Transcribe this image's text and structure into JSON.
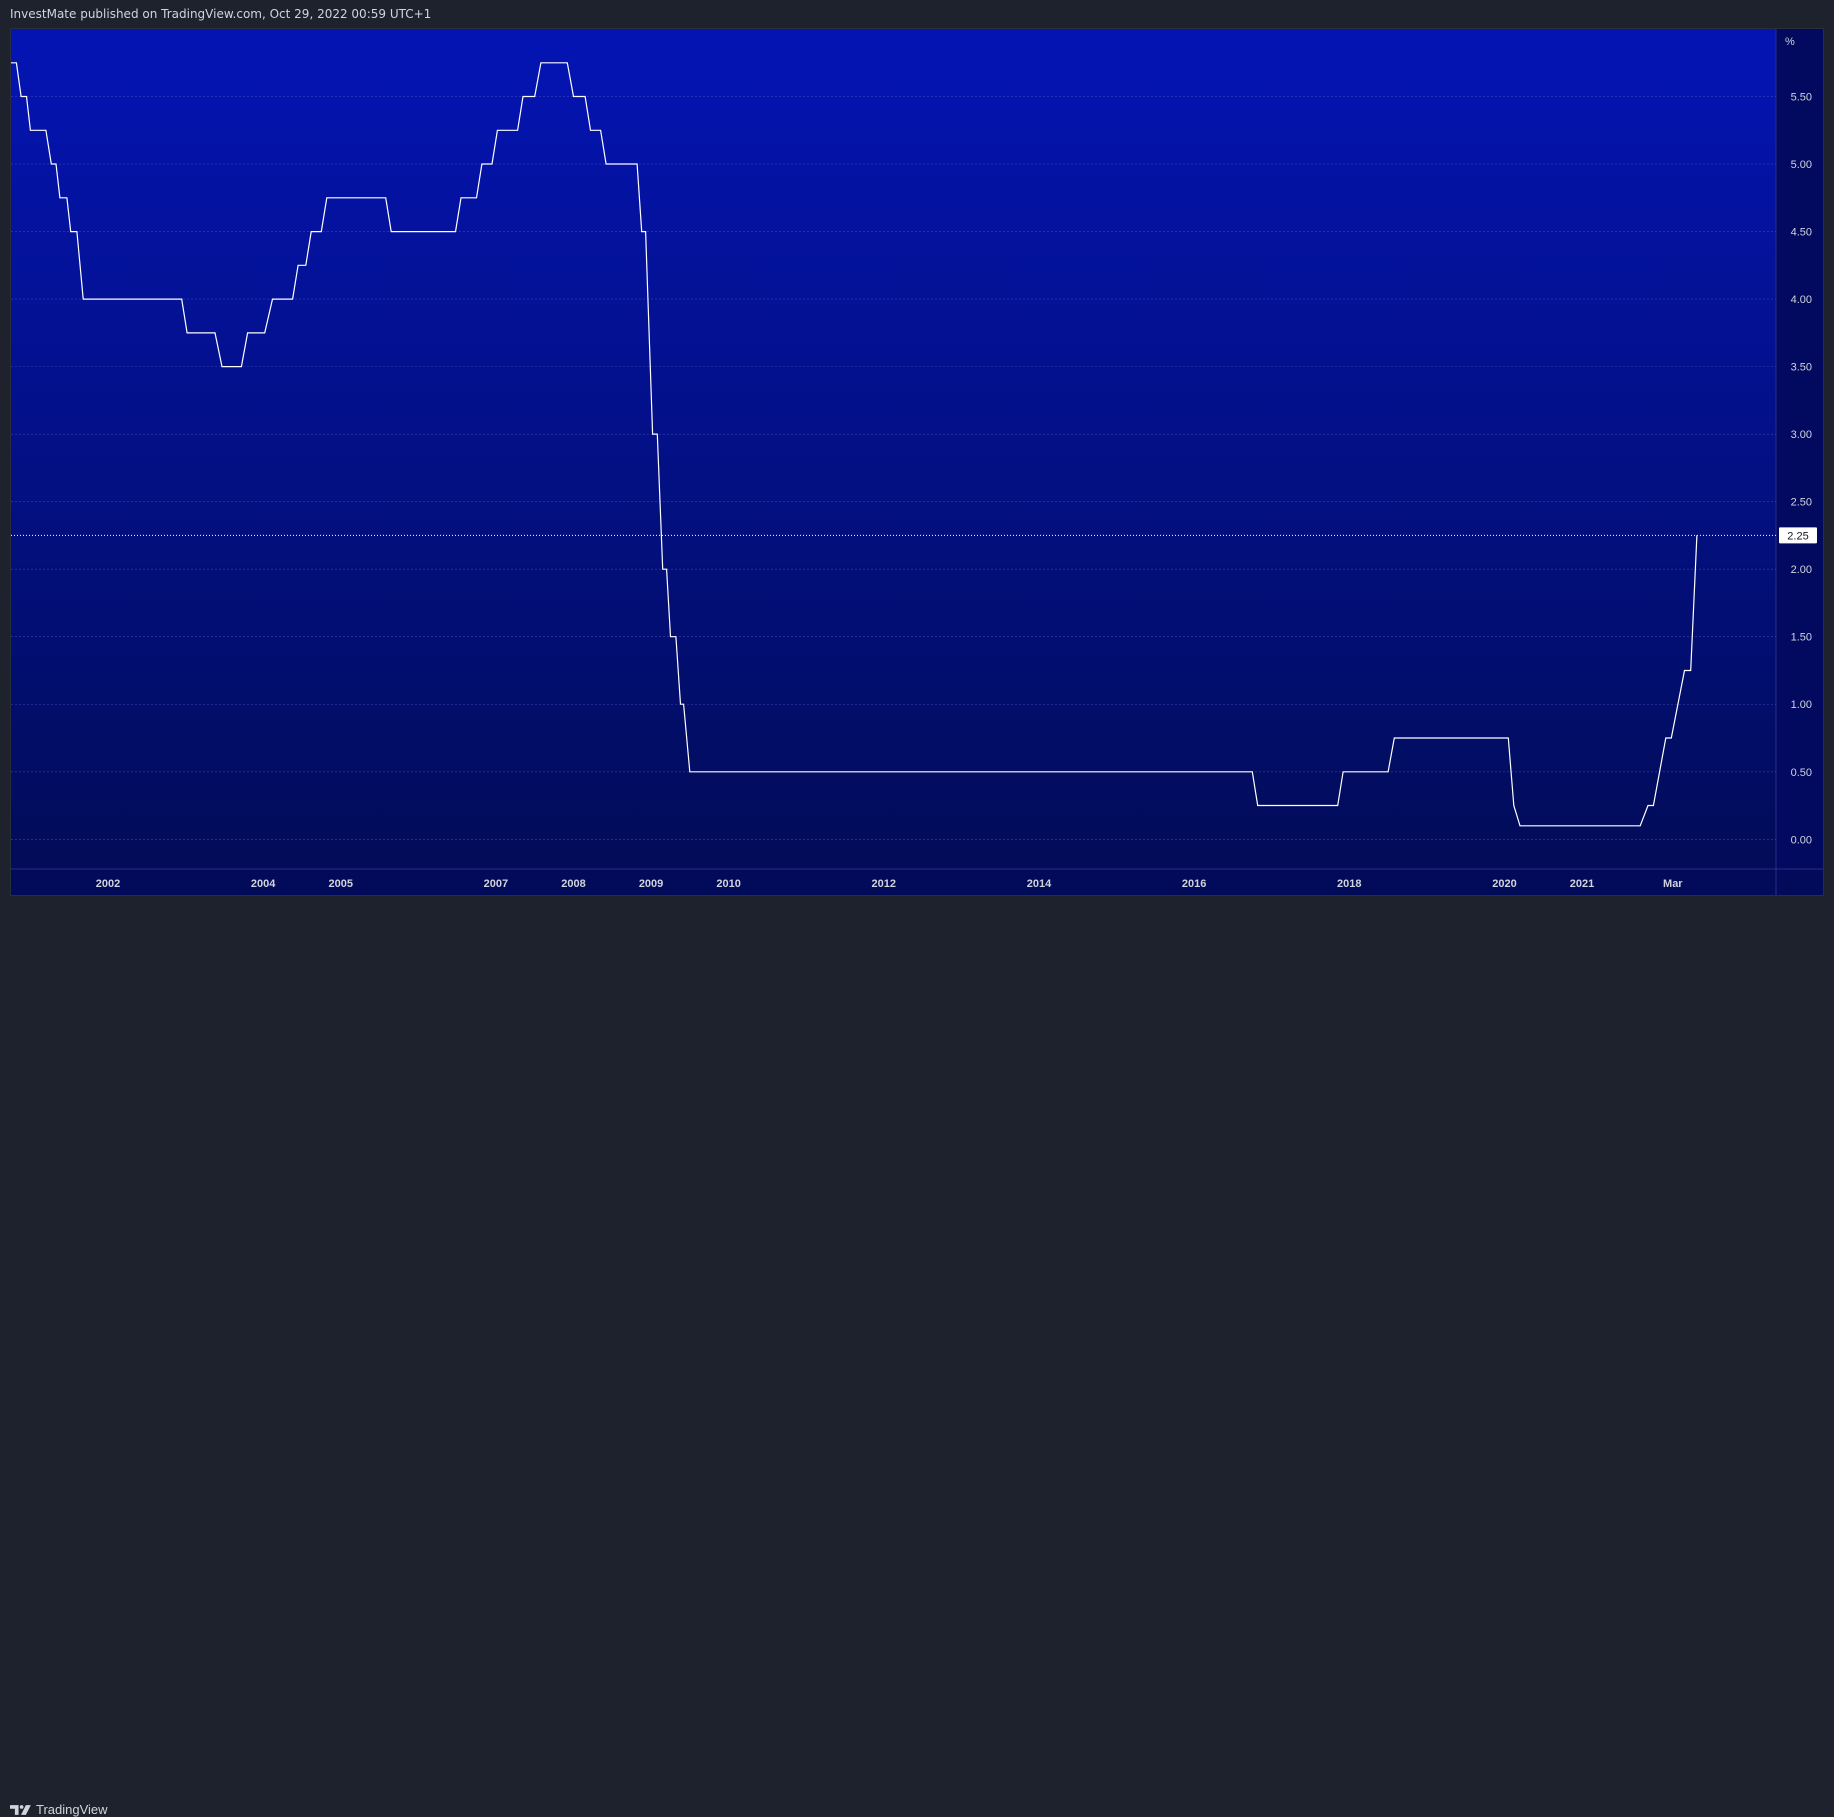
{
  "header": {
    "published_text": "InvestMate published on TradingView.com, Oct 29, 2022 00:59 UTC+1"
  },
  "footer": {
    "brand": "TradingView",
    "logo_icon": "tradingview-logo-icon"
  },
  "colors": {
    "background_top": "#0414b4",
    "background_bottom": "#020c58",
    "line": "#ffffff",
    "grid": "#4a5bc8",
    "axis_text": "#d1d4dc",
    "frame": "#1e222d"
  },
  "chart_data": {
    "type": "line",
    "unit_label": "%",
    "ylim": [
      -0.22,
      6.0
    ],
    "yticks": [
      "0.00",
      "0.50",
      "1.00",
      "1.50",
      "2.00",
      "2.50",
      "3.00",
      "3.50",
      "4.00",
      "4.50",
      "5.00",
      "5.50"
    ],
    "xticks": [
      {
        "label": "2002",
        "x": 2002.0
      },
      {
        "label": "2004",
        "x": 2004.0
      },
      {
        "label": "2005",
        "x": 2005.0
      },
      {
        "label": "2007",
        "x": 2007.0
      },
      {
        "label": "2008",
        "x": 2008.0
      },
      {
        "label": "2009",
        "x": 2009.0
      },
      {
        "label": "2010",
        "x": 2010.0
      },
      {
        "label": "2012",
        "x": 2012.0
      },
      {
        "label": "2014",
        "x": 2014.0
      },
      {
        "label": "2016",
        "x": 2016.0
      },
      {
        "label": "2018",
        "x": 2018.0
      },
      {
        "label": "2020",
        "x": 2020.0
      },
      {
        "label": "2021",
        "x": 2021.0
      },
      {
        "label": "Mar",
        "x": 2022.17
      }
    ],
    "xlim": [
      2000.75,
      2023.5
    ],
    "last_value_label": "2.25",
    "last_value": 2.25,
    "grid": true,
    "series": [
      {
        "points": [
          [
            2000.75,
            5.75
          ],
          [
            2000.82,
            5.75
          ],
          [
            2000.88,
            5.5
          ],
          [
            2000.95,
            5.5
          ],
          [
            2001.0,
            5.25
          ],
          [
            2001.2,
            5.25
          ],
          [
            2001.27,
            5.0
          ],
          [
            2001.33,
            5.0
          ],
          [
            2001.38,
            4.75
          ],
          [
            2001.47,
            4.75
          ],
          [
            2001.52,
            4.5
          ],
          [
            2001.6,
            4.5
          ],
          [
            2001.68,
            4.0
          ],
          [
            2002.95,
            4.0
          ],
          [
            2003.02,
            3.75
          ],
          [
            2003.38,
            3.75
          ],
          [
            2003.47,
            3.5
          ],
          [
            2003.72,
            3.5
          ],
          [
            2003.8,
            3.75
          ],
          [
            2004.02,
            3.75
          ],
          [
            2004.12,
            4.0
          ],
          [
            2004.38,
            4.0
          ],
          [
            2004.45,
            4.25
          ],
          [
            2004.55,
            4.25
          ],
          [
            2004.62,
            4.5
          ],
          [
            2004.75,
            4.5
          ],
          [
            2004.82,
            4.75
          ],
          [
            2005.58,
            4.75
          ],
          [
            2005.65,
            4.5
          ],
          [
            2006.48,
            4.5
          ],
          [
            2006.55,
            4.75
          ],
          [
            2006.75,
            4.75
          ],
          [
            2006.82,
            5.0
          ],
          [
            2006.95,
            5.0
          ],
          [
            2007.02,
            5.25
          ],
          [
            2007.28,
            5.25
          ],
          [
            2007.35,
            5.5
          ],
          [
            2007.5,
            5.5
          ],
          [
            2007.58,
            5.75
          ],
          [
            2007.92,
            5.75
          ],
          [
            2008.0,
            5.5
          ],
          [
            2008.15,
            5.5
          ],
          [
            2008.22,
            5.25
          ],
          [
            2008.35,
            5.25
          ],
          [
            2008.42,
            5.0
          ],
          [
            2008.82,
            5.0
          ],
          [
            2008.88,
            4.5
          ],
          [
            2008.93,
            4.5
          ],
          [
            2009.02,
            3.0
          ],
          [
            2009.08,
            3.0
          ],
          [
            2009.15,
            2.0
          ],
          [
            2009.2,
            2.0
          ],
          [
            2009.25,
            1.5
          ],
          [
            2009.32,
            1.5
          ],
          [
            2009.38,
            1.0
          ],
          [
            2009.42,
            1.0
          ],
          [
            2009.5,
            0.5
          ],
          [
            2016.75,
            0.5
          ],
          [
            2016.82,
            0.25
          ],
          [
            2017.85,
            0.25
          ],
          [
            2017.92,
            0.5
          ],
          [
            2018.5,
            0.5
          ],
          [
            2018.58,
            0.75
          ],
          [
            2020.05,
            0.75
          ],
          [
            2020.12,
            0.25
          ],
          [
            2020.2,
            0.1
          ],
          [
            2021.75,
            0.1
          ],
          [
            2021.85,
            0.25
          ],
          [
            2021.92,
            0.25
          ],
          [
            2022.08,
            0.75
          ],
          [
            2022.15,
            0.75
          ],
          [
            2022.32,
            1.25
          ],
          [
            2022.4,
            1.25
          ],
          [
            2022.48,
            2.25
          ]
        ]
      }
    ]
  }
}
